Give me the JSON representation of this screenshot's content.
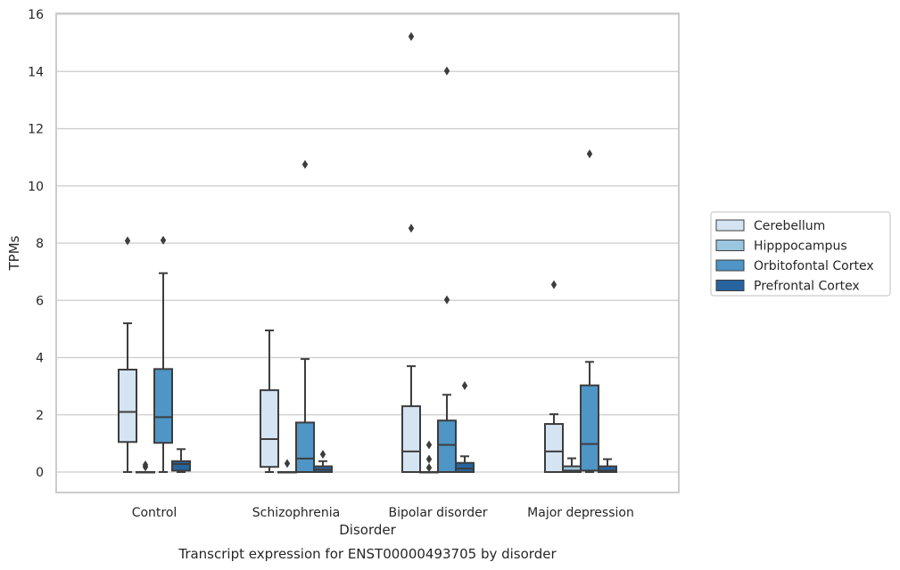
{
  "chart_data": {
    "type": "box",
    "title": "",
    "caption": "Transcript expression for ENST00000493705 by disorder",
    "xlabel": "Disorder",
    "ylabel": "TPMs",
    "ylim": [
      -0.7,
      16
    ],
    "yticks": [
      0,
      2,
      4,
      6,
      8,
      10,
      12,
      14,
      16
    ],
    "grid": "horizontal",
    "legend_position": "right",
    "categories": [
      "Control",
      "Schizophrenia",
      "Bipolar disorder",
      "Major depression"
    ],
    "colors": {
      "Cerebellum": "#d5e4f3",
      "Hipppocampus": "#9ac7df",
      "Orbitofontal Cortex": "#4f95c6",
      "Prefrontal Cortex": "#27649f",
      "line": "#3d3d3d",
      "grid": "#cccccc",
      "frame": "#cccccc"
    },
    "series": [
      {
        "name": "Cerebellum",
        "boxes": [
          {
            "whislo": 0,
            "q1": 1.05,
            "med": 2.1,
            "q3": 3.58,
            "whishi": 5.2,
            "fliers": [
              8.08
            ]
          },
          {
            "whislo": 0,
            "q1": 0.18,
            "med": 1.15,
            "q3": 2.86,
            "whishi": 4.95,
            "fliers": []
          },
          {
            "whislo": 0,
            "q1": 0,
            "med": 0.72,
            "q3": 2.3,
            "whishi": 3.7,
            "fliers": [
              8.52,
              15.22
            ]
          },
          {
            "whislo": 0,
            "q1": 0,
            "med": 0.72,
            "q3": 1.68,
            "whishi": 2.02,
            "fliers": [
              6.55
            ]
          }
        ]
      },
      {
        "name": "Hipppocampus",
        "boxes": [
          {
            "whislo": 0,
            "q1": 0,
            "med": 0,
            "q3": 0,
            "whishi": 0,
            "fliers": [
              0.18,
              0.25
            ]
          },
          {
            "whislo": 0,
            "q1": 0,
            "med": 0,
            "q3": 0,
            "whishi": 0,
            "fliers": [
              0.3
            ]
          },
          {
            "whislo": 0,
            "q1": 0,
            "med": 0,
            "q3": 0,
            "whishi": 0,
            "fliers": [
              0.15,
              0.45,
              0.95
            ]
          },
          {
            "whislo": 0,
            "q1": 0,
            "med": 0.05,
            "q3": 0.2,
            "whishi": 0.48,
            "fliers": []
          }
        ]
      },
      {
        "name": "Orbitofontal Cortex",
        "boxes": [
          {
            "whislo": 0,
            "q1": 1.02,
            "med": 1.92,
            "q3": 3.6,
            "whishi": 6.95,
            "fliers": [
              8.1
            ]
          },
          {
            "whislo": 0,
            "q1": 0,
            "med": 0.47,
            "q3": 1.73,
            "whishi": 3.95,
            "fliers": [
              10.75
            ]
          },
          {
            "whislo": 0,
            "q1": 0,
            "med": 0.95,
            "q3": 1.8,
            "whishi": 2.7,
            "fliers": [
              6.02,
              14.02
            ]
          },
          {
            "whislo": 0,
            "q1": 0.05,
            "med": 0.98,
            "q3": 3.03,
            "whishi": 3.85,
            "fliers": [
              11.12
            ]
          }
        ]
      },
      {
        "name": "Prefrontal Cortex",
        "boxes": [
          {
            "whislo": 0,
            "q1": 0.05,
            "med": 0.28,
            "q3": 0.38,
            "whishi": 0.8,
            "fliers": []
          },
          {
            "whislo": 0,
            "q1": 0,
            "med": 0.08,
            "q3": 0.2,
            "whishi": 0.38,
            "fliers": [
              0.62
            ]
          },
          {
            "whislo": 0,
            "q1": 0,
            "med": 0.12,
            "q3": 0.32,
            "whishi": 0.55,
            "fliers": [
              3.02
            ]
          },
          {
            "whislo": 0,
            "q1": 0,
            "med": 0.05,
            "q3": 0.2,
            "whishi": 0.45,
            "fliers": []
          }
        ]
      }
    ]
  }
}
